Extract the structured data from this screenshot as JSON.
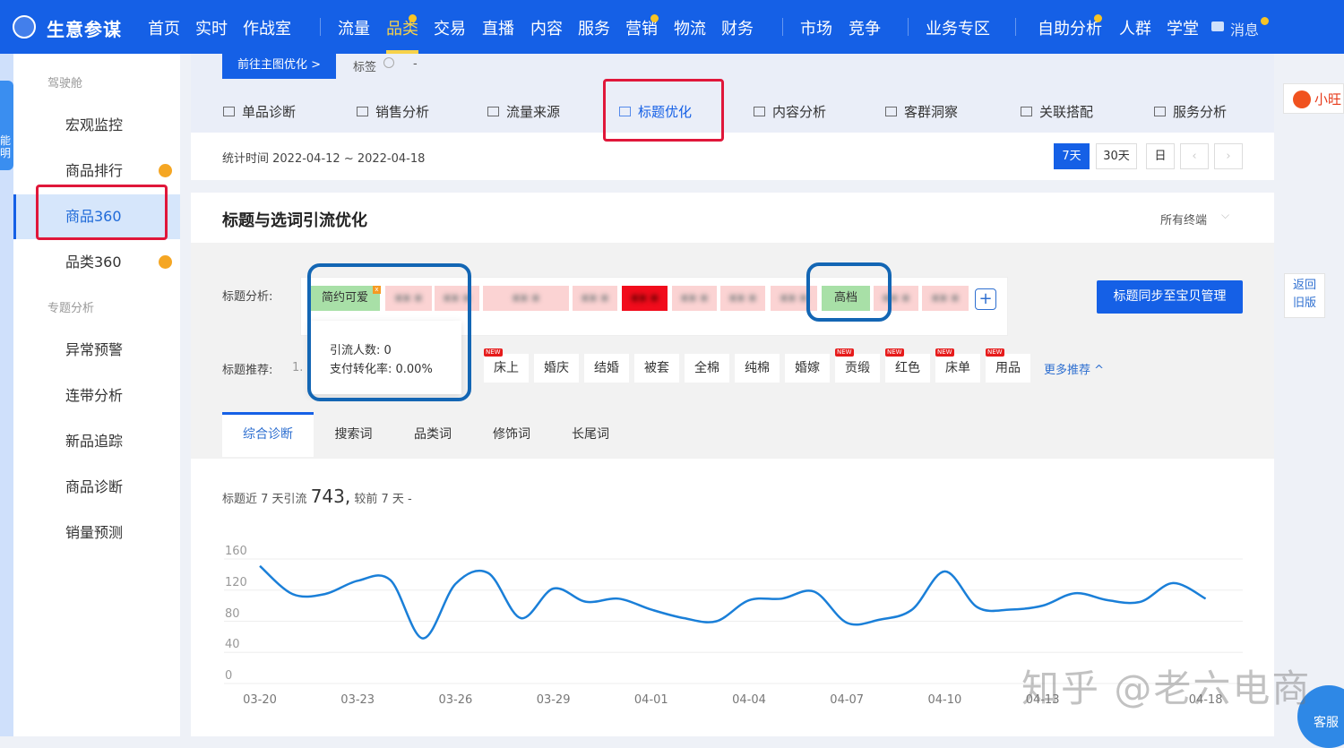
{
  "topnav": {
    "brand": "生意参谋",
    "items": [
      "首页",
      "实时",
      "作战室",
      "流量",
      "品类",
      "交易",
      "直播",
      "内容",
      "服务",
      "营销",
      "物流",
      "财务",
      "市场",
      "竞争",
      "业务专区",
      "自助分析",
      "人群",
      "学堂"
    ],
    "active": "品类",
    "message": "消息"
  },
  "rail": {
    "mascot_text": "能明"
  },
  "sidebar": {
    "group1": "驾驶舱",
    "items1": [
      "宏观监控",
      "商品排行",
      "商品360",
      "品类360"
    ],
    "group2": "专题分析",
    "items2": [
      "异常预警",
      "连带分析",
      "新品追踪",
      "商品诊断",
      "销量预测"
    ],
    "active": "商品360"
  },
  "card1": {
    "go_main_image": "前往主图优化 >",
    "tag_label": "标签",
    "tag_value": "-",
    "tabs": [
      "单品诊断",
      "销售分析",
      "流量来源",
      "标题优化",
      "内容分析",
      "客群洞察",
      "关联搭配",
      "服务分析"
    ],
    "active_tab": "标题优化",
    "date_range": "统计时间 2022-04-12 ~ 2022-04-18",
    "periods": [
      "7天",
      "30天",
      "日"
    ],
    "active_period": "7天"
  },
  "section": {
    "title": "标题与选词引流优化",
    "terminal": "所有终端",
    "title_analysis_label": "标题分析:",
    "tags": [
      {
        "text": "简约可爱",
        "status": "good"
      },
      {
        "text": "",
        "status": "weak"
      },
      {
        "text": "",
        "status": "weak"
      },
      {
        "text": "",
        "status": "weak"
      },
      {
        "text": "",
        "status": "weak"
      },
      {
        "text": "",
        "status": "bad"
      },
      {
        "text": "",
        "status": "weak"
      },
      {
        "text": "",
        "status": "weak"
      },
      {
        "text": "",
        "status": "weak"
      },
      {
        "text": "高档",
        "status": "good"
      },
      {
        "text": "",
        "status": "weak"
      },
      {
        "text": "",
        "status": "weak"
      }
    ],
    "sync_button": "标题同步至宝贝管理",
    "tooltip": {
      "visitors": "引流人数: 0",
      "conversion": "支付转化率: 0.00%"
    },
    "recommend_label": "标题推荐:",
    "recommend_index": "1.",
    "recommend": [
      {
        "text": "床上",
        "new": true
      },
      {
        "text": "婚庆",
        "new": false
      },
      {
        "text": "结婚",
        "new": false
      },
      {
        "text": "被套",
        "new": false
      },
      {
        "text": "全棉",
        "new": false
      },
      {
        "text": "纯棉",
        "new": false
      },
      {
        "text": "婚嫁",
        "new": false
      },
      {
        "text": "贡缎",
        "new": true
      },
      {
        "text": "红色",
        "new": true
      },
      {
        "text": "床单",
        "new": true
      },
      {
        "text": "用品",
        "new": true
      }
    ],
    "new_badge": "NEW",
    "more": "更多推荐 ^",
    "subtabs": [
      "综合诊断",
      "搜索词",
      "品类词",
      "修饰词",
      "长尾词"
    ],
    "active_subtab": "综合诊断",
    "summary_prefix": "标题近 7 天引流",
    "summary_value": "743,",
    "summary_suffix": "较前 7 天 -"
  },
  "chart_data": {
    "type": "line",
    "color": "#1a7fd8",
    "ylim": [
      0,
      160
    ],
    "yticks": [
      0,
      40,
      80,
      120,
      160
    ],
    "grid": true,
    "x": [
      "03-20",
      "03-21",
      "03-22",
      "03-23",
      "03-24",
      "03-25",
      "03-26",
      "03-27",
      "03-28",
      "03-29",
      "03-30",
      "03-31",
      "04-01",
      "04-02",
      "04-03",
      "04-04",
      "04-05",
      "04-06",
      "04-07",
      "04-08",
      "04-09",
      "04-10",
      "04-11",
      "04-12",
      "04-13",
      "04-14",
      "04-15",
      "04-16",
      "04-17",
      "04-18"
    ],
    "xtick_labels": [
      "03-20",
      "03-23",
      "03-26",
      "03-29",
      "04-01",
      "04-04",
      "04-07",
      "04-10",
      "04-13",
      "04-18"
    ],
    "values": [
      151,
      115,
      115,
      132,
      133,
      58,
      128,
      142,
      84,
      122,
      105,
      109,
      95,
      84,
      80,
      107,
      109,
      118,
      78,
      82,
      95,
      144,
      98,
      95,
      100,
      116,
      107,
      105,
      129,
      109
    ]
  },
  "right": {
    "badge": "小旺",
    "back_old": "返回旧版",
    "service": "客服"
  },
  "watermark": "知乎 @老六电商"
}
